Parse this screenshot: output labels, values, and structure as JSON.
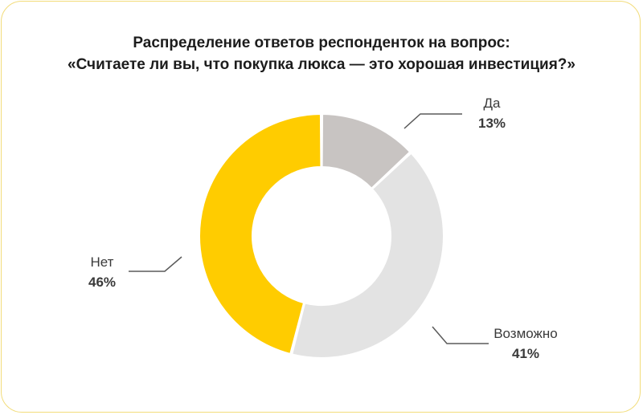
{
  "title": {
    "line1": "Распределение ответов респонденток на вопрос:",
    "line2": "«Считаете ли вы, что покупка люкса — это хорошая инвестиция?»"
  },
  "chart_data": {
    "type": "pie",
    "donut": true,
    "title": "Распределение ответов респонденток на вопрос: «Считаете ли вы, что покупка люкса — это хорошая инвестиция?»",
    "unit": "%",
    "series": [
      {
        "name": "Да",
        "value": 13,
        "label": "13%",
        "color": "#c8c4c2"
      },
      {
        "name": "Возможно",
        "value": 41,
        "label": "41%",
        "color": "#e3e3e3"
      },
      {
        "name": "Нет",
        "value": 46,
        "label": "46%",
        "color": "#ffcc00"
      }
    ]
  },
  "colors": {
    "border": "#f2dc7a",
    "leader": "#5a5a5a",
    "text": "#3a3a3a"
  }
}
